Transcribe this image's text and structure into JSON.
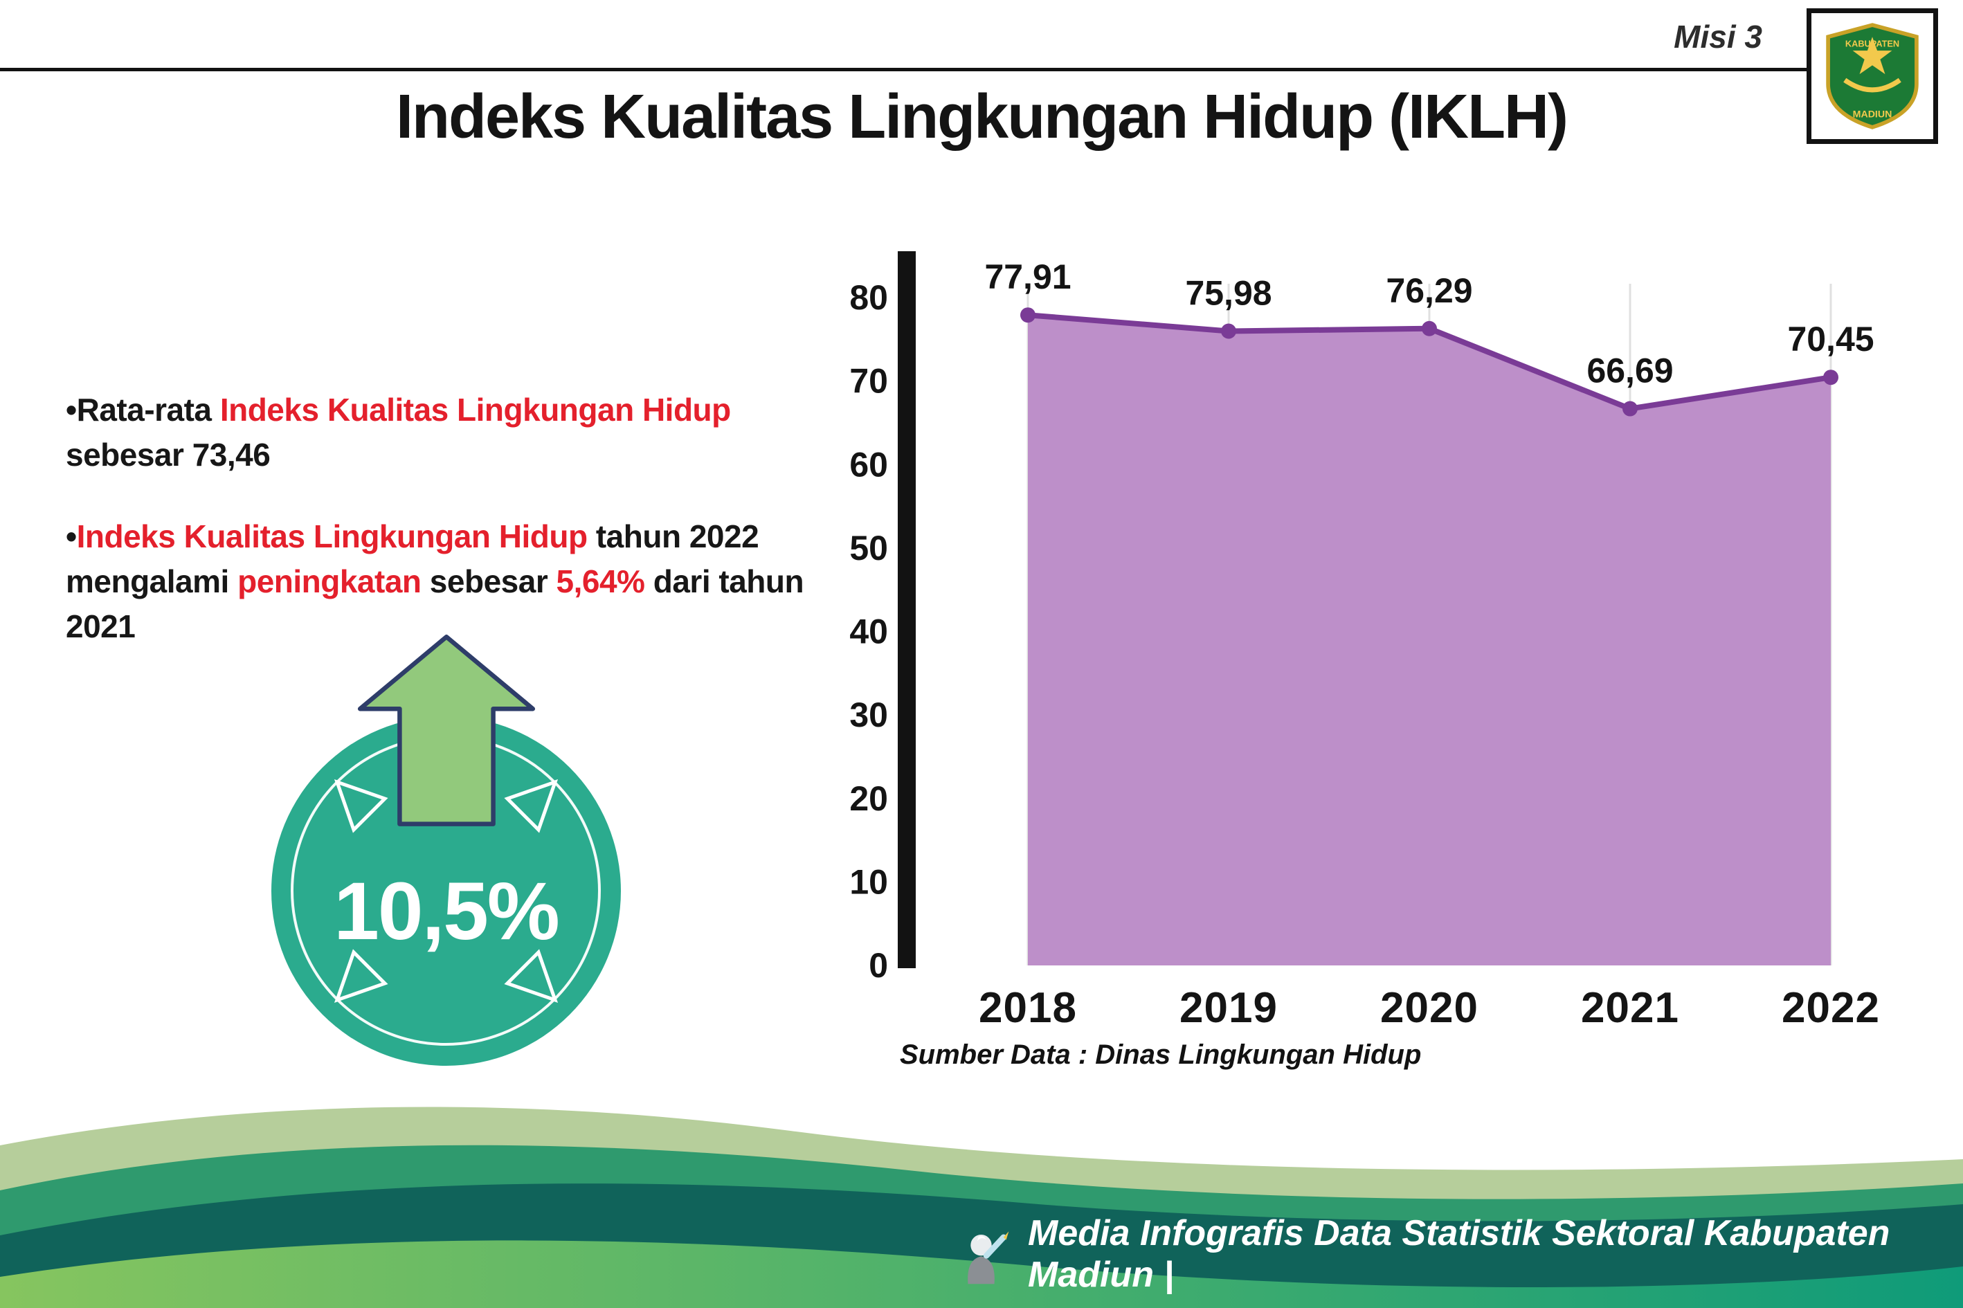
{
  "header": {
    "misi": "Misi 3",
    "title": "Indeks Kualitas Lingkungan Hidup (IKLH)"
  },
  "logo": {
    "text_top": "KABUPATEN",
    "text_bottom": "MADIUN"
  },
  "bullets": {
    "marker": "•",
    "b1": {
      "p1": "Rata-rata ",
      "p2": "Indeks Kualitas Lingkungan Hidup",
      "p3": " sebesar 73,46"
    },
    "b2": {
      "p1": "Indeks Kualitas Lingkungan Hidup",
      "p2": " tahun 2022 mengalami ",
      "p3": "peningkatan",
      "p4": " sebesar ",
      "p5": "5,64%",
      "p6": " dari tahun 2021"
    }
  },
  "badge": {
    "value": "10,5%"
  },
  "chart_data": {
    "type": "area",
    "title": "Indeks Kualitas Lingkungan Hidup (IKLH)",
    "categories": [
      "2018",
      "2019",
      "2020",
      "2021",
      "2022"
    ],
    "values": [
      77.91,
      75.98,
      76.29,
      66.69,
      70.45
    ],
    "value_labels": [
      "77,91",
      "75,98",
      "76,29",
      "66,69",
      "70,45"
    ],
    "ylim": [
      0,
      80
    ],
    "yticks": [
      0,
      10,
      20,
      30,
      40,
      50,
      60,
      70,
      80
    ],
    "grid": "faint-vertical",
    "legend": "none",
    "fill_color": "#bd8fc9",
    "line_color": "#7a3b96",
    "source": "Sumber Data : Dinas Lingkungan Hidup"
  },
  "footer": {
    "caption": "Media Infografis Data Statistik Sektoral Kabupaten Madiun |"
  },
  "colors": {
    "accent_red": "#e4202c",
    "teal_circle": "#2bab8e",
    "arrow_green": "#92c97c",
    "arrow_outline": "#2e3d69",
    "footer_sage": "#b6ce9b",
    "footer_mid": "#2f9a6e",
    "footer_dark": "#10635a",
    "footer_grad1": "#86c55f",
    "footer_grad2": "#0f9b79",
    "text_dark": "#141414"
  }
}
